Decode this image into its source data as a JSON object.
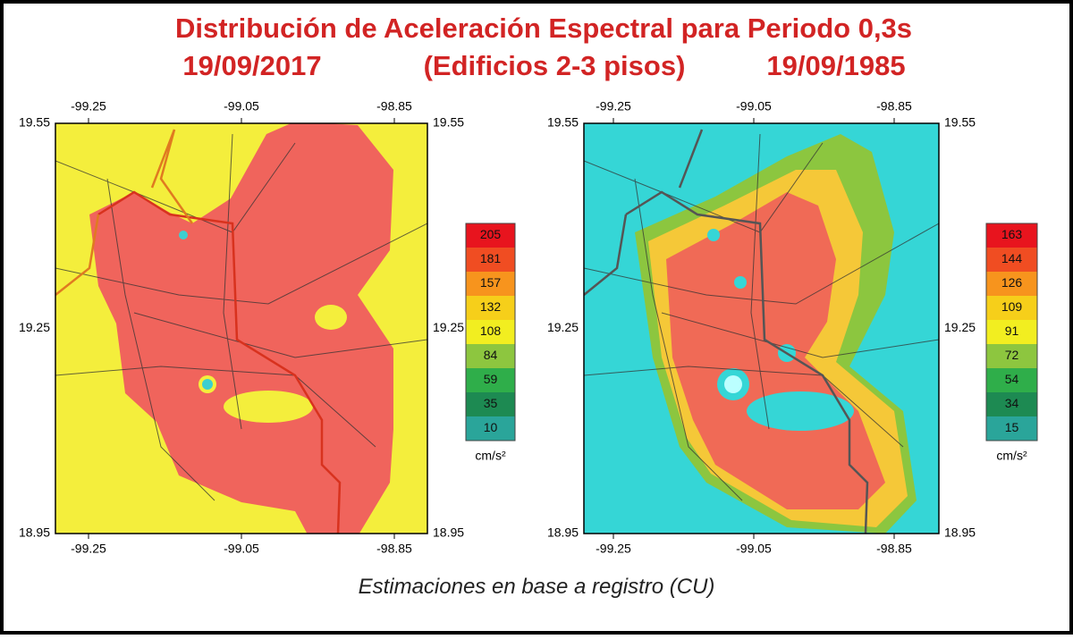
{
  "header": {
    "title": "Distribución de Aceleración Espectral para Periodo 0,3s",
    "left_date": "19/09/2017",
    "subtitle": "(Edificios 2-3 pisos)",
    "right_date": "19/09/1985"
  },
  "maps": [
    {
      "lon_ticks": [
        -99.25,
        -99.05,
        -98.85
      ],
      "lat_ticks": [
        19.55,
        19.25,
        18.95
      ],
      "colorbar": {
        "levels": [
          205,
          181,
          157,
          132,
          108,
          84,
          59,
          35,
          10
        ],
        "colors": [
          "#e8141e",
          "#f04d22",
          "#f7941d",
          "#f6cf1a",
          "#f2ee20",
          "#8dc63f",
          "#2fae4a",
          "#1d8a52",
          "#2aa59a"
        ],
        "unit": "cm/s²"
      }
    },
    {
      "lon_ticks": [
        -99.25,
        -99.05,
        -98.85
      ],
      "lat_ticks": [
        19.55,
        19.25,
        18.95
      ],
      "colorbar": {
        "levels": [
          163,
          144,
          126,
          109,
          91,
          72,
          54,
          34,
          15
        ],
        "colors": [
          "#e8141e",
          "#f04d22",
          "#f7941d",
          "#f6cf1a",
          "#f2ee20",
          "#8dc63f",
          "#2fae4a",
          "#1d8a52",
          "#2aa59a"
        ],
        "unit": "cm/s²"
      }
    }
  ],
  "footer": "Estimaciones en base a registro (CU)"
}
